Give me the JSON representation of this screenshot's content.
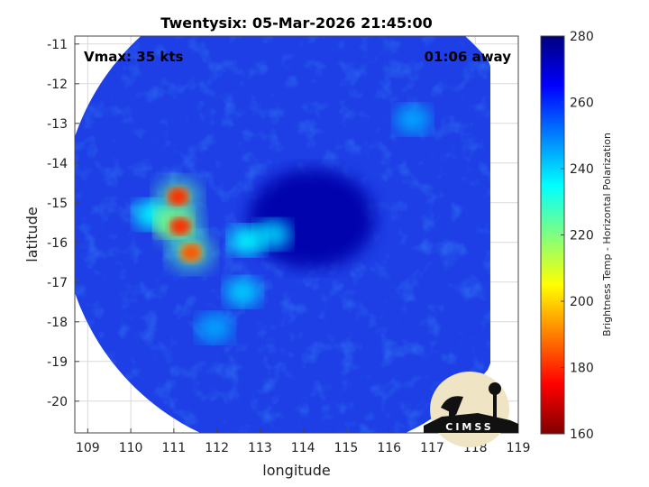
{
  "chart_data": {
    "type": "heatmap",
    "title": "Twentysix: 05-Mar-2026 21:45:00",
    "xlabel": "longitude",
    "ylabel": "latitude",
    "xlim": [
      108.7,
      119
    ],
    "ylim": [
      -20.8,
      -10.8
    ],
    "xticks": [
      109,
      110,
      111,
      112,
      113,
      114,
      115,
      116,
      117,
      118,
      119
    ],
    "yticks": [
      -11,
      -12,
      -13,
      -14,
      -15,
      -16,
      -17,
      -18,
      -19,
      -20
    ],
    "grid": true,
    "annotations": {
      "vmax": "Vmax: 35 kts",
      "offset": "01:06 away"
    },
    "colorbar": {
      "label": "Brightness Temp - Horizontal Polarization",
      "min": 160,
      "max": 280,
      "ticks": [
        160,
        180,
        200,
        220,
        240,
        260,
        280
      ],
      "colormap": "jet-reversed"
    },
    "swath": {
      "center_lon": 114.0,
      "center_lat": -15.3,
      "radius_deg": 5.6,
      "east_edge_lon": 118.35,
      "south_edge_lat": -20.8
    },
    "features": [
      {
        "name": "cold-core",
        "lon": 111.1,
        "lat": -14.85,
        "tb": 180
      },
      {
        "name": "cold-core",
        "lon": 111.15,
        "lat": -15.6,
        "tb": 180
      },
      {
        "name": "cold-core",
        "lon": 111.4,
        "lat": -16.25,
        "tb": 185
      },
      {
        "name": "convection",
        "lon": 111.0,
        "lat": -15.5,
        "tb": 215
      },
      {
        "name": "convection",
        "lon": 110.5,
        "lat": -15.3,
        "tb": 235
      },
      {
        "name": "convection",
        "lon": 112.7,
        "lat": -15.95,
        "tb": 235
      },
      {
        "name": "convection",
        "lon": 113.3,
        "lat": -15.8,
        "tb": 240
      },
      {
        "name": "convection",
        "lon": 112.6,
        "lat": -17.25,
        "tb": 240
      },
      {
        "name": "convection",
        "lon": 111.95,
        "lat": -18.15,
        "tb": 245
      },
      {
        "name": "convection",
        "lon": 116.55,
        "lat": -12.9,
        "tb": 245
      },
      {
        "name": "warm-center",
        "lon": 114.2,
        "lat": -15.4,
        "tb": 275
      }
    ],
    "background_tb": 265
  },
  "logo": {
    "text": "CIMSS"
  },
  "colors": {
    "cold": "#7f0000",
    "warm": "#00007f",
    "background_field": "#1c3ee0"
  }
}
